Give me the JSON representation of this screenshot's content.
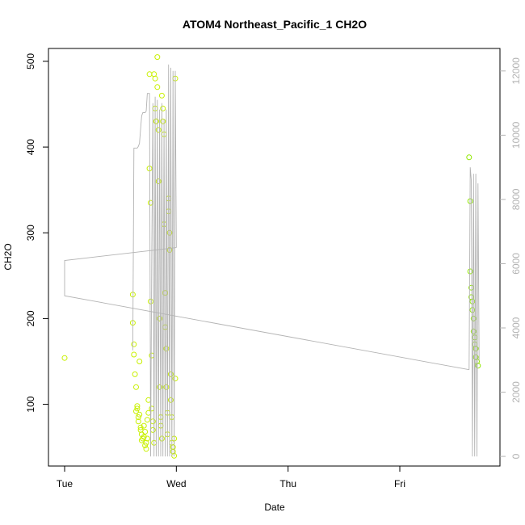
{
  "chart_data": {
    "type": "scatter",
    "title": "ATOM4 Northeast_Pacific_1 CH2O",
    "xlabel": "Date",
    "ylabel": "CH2O",
    "x_ticks": [
      "Tue",
      "Wed",
      "Thu",
      "Fri"
    ],
    "x_units": "days since Tue 00:00",
    "xlim": [
      0.0,
      3.9
    ],
    "ylim": [
      28,
      515
    ],
    "y_ticks": [
      100,
      200,
      300,
      400,
      500
    ],
    "y2lim": [
      -300,
      12700
    ],
    "y2_ticks": [
      0,
      2000,
      4000,
      6000,
      8000,
      10000,
      12000
    ],
    "grid": false,
    "legend": "none",
    "colors": {
      "points": "#c8f000",
      "points_alt": "#90e800",
      "line": "#b3b3b3",
      "axis": "#000000",
      "axis2": "#b3b3b3"
    },
    "series": [
      {
        "kind": "points",
        "x": [
          0.0,
          0.61,
          0.61,
          0.62,
          0.62,
          0.63,
          0.64,
          0.64,
          0.65,
          0.65,
          0.66,
          0.66,
          0.67,
          0.67,
          0.68,
          0.68,
          0.69,
          0.69,
          0.7,
          0.71,
          0.71,
          0.72,
          0.72,
          0.73,
          0.73,
          0.74,
          0.74,
          0.75,
          0.75,
          0.76,
          0.76,
          0.77,
          0.77,
          0.78,
          0.78,
          0.79,
          0.79,
          0.8,
          0.8,
          0.81,
          0.81,
          0.82,
          0.82,
          0.83,
          0.83,
          0.84,
          0.84,
          0.85,
          0.85,
          0.86,
          0.86,
          0.87,
          0.87,
          0.88,
          0.88,
          0.89,
          0.89,
          0.9,
          0.9,
          0.91,
          0.91,
          0.92,
          0.92,
          0.93,
          0.93,
          0.94,
          0.94,
          0.95,
          0.95,
          0.96,
          0.96,
          0.97,
          0.97,
          0.98,
          0.98,
          0.99,
          0.99,
          3.62,
          3.63,
          3.63,
          3.64,
          3.64,
          3.65,
          3.65,
          3.66,
          3.66,
          3.67,
          3.67,
          3.68,
          3.68,
          3.69,
          3.7
        ],
        "y": [
          154,
          228,
          195,
          170,
          158,
          135,
          120,
          92,
          95,
          98,
          85,
          80,
          88,
          150,
          73,
          70,
          65,
          58,
          60,
          62,
          75,
          68,
          52,
          48,
          55,
          60,
          82,
          90,
          105,
          485,
          375,
          335,
          220,
          157,
          95,
          80,
          70,
          55,
          485,
          480,
          445,
          430,
          430,
          505,
          470,
          420,
          360,
          200,
          120,
          85,
          75,
          60,
          460,
          445,
          430,
          415,
          310,
          230,
          190,
          165,
          120,
          90,
          65,
          340,
          325,
          300,
          280,
          135,
          105,
          85,
          55,
          50,
          45,
          40,
          60,
          480,
          130,
          388,
          337,
          255,
          236,
          225,
          220,
          210,
          200,
          185,
          178,
          170,
          165,
          155,
          150,
          145
        ]
      },
      {
        "kind": "line",
        "x": [
          0.61,
          0.62,
          0.63,
          0.64,
          0.65,
          0.66,
          0.67,
          0.68,
          0.69,
          0.7,
          0.71,
          0.72,
          0.73,
          0.74,
          0.75,
          0.76,
          0.77,
          0.78,
          0.79,
          0.8,
          0.81,
          0.82,
          0.83,
          0.84,
          0.85,
          0.86,
          0.87,
          0.88,
          0.89,
          0.9,
          0.91,
          0.92,
          0.93,
          0.94,
          0.95,
          0.96,
          0.97,
          0.98,
          0.99,
          1.0
        ],
        "y": [
          3300,
          9600,
          9600,
          9600,
          9600,
          9650,
          9750,
          10200,
          10600,
          10700,
          10700,
          10700,
          10750,
          11300,
          11300,
          11300,
          0,
          6300,
          11000,
          0,
          11200,
          0,
          11100,
          0,
          10800,
          0,
          11000,
          0,
          10500,
          0,
          10800,
          0,
          12200,
          0,
          12100,
          0,
          12000,
          0,
          12000,
          6500
        ]
      },
      {
        "kind": "line",
        "x": [
          1.0,
          0.0,
          0.0,
          3.62
        ],
        "y": [
          6500,
          6100,
          5000,
          2700
        ]
      },
      {
        "kind": "line",
        "x": [
          3.62,
          3.63,
          3.64,
          3.65,
          3.66,
          3.67,
          3.68,
          3.69,
          3.7,
          3.71
        ],
        "y": [
          2700,
          9000,
          8600,
          0,
          8800,
          0,
          8800,
          0,
          8500,
          3000
        ]
      }
    ]
  }
}
